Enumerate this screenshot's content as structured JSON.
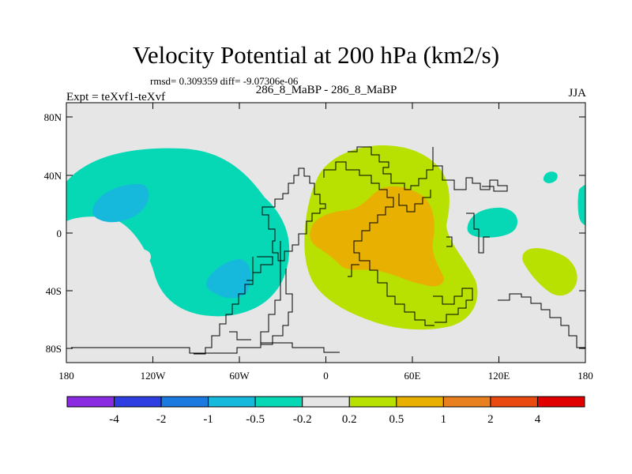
{
  "header": {
    "title": "Velocity Potential at 200 hPa (km2/s)",
    "stats": "rmsd= 0.309359 diff= -9.07306e-06",
    "run_label": "286_8_MaBP - 286_8_MaBP",
    "experiment": "Expt = teXvf1-teXvf",
    "season": "JJA"
  },
  "axes": {
    "lat_labels": [
      "80N",
      "40N",
      "0",
      "40S",
      "80S"
    ],
    "lon_labels": [
      "180",
      "120W",
      "60W",
      "0",
      "60E",
      "120E",
      "180"
    ]
  },
  "colorbar": {
    "levels": [
      "-4",
      "-2",
      "-1",
      "-0.5",
      "-0.2",
      "0.2",
      "0.5",
      "1",
      "2",
      "4"
    ],
    "colors": [
      "#8a2be2",
      "#2f3ee0",
      "#1a7ae0",
      "#16b8dc",
      "#06d8b6",
      "#e6e6e6",
      "#b8e000",
      "#e8b000",
      "#e88020",
      "#e84a10",
      "#e00000"
    ]
  },
  "regions": {
    "background": "#e6e6e6",
    "negative_light": "#06d8b6",
    "negative_mid": "#16b8dc",
    "positive_light": "#b8e000",
    "positive_mid": "#e8b000"
  }
}
